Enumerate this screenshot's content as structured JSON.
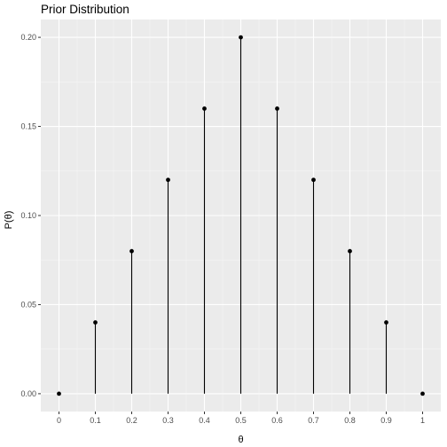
{
  "chart_data": {
    "type": "lollipop",
    "title": "Prior Distribution",
    "xlabel": "θ",
    "ylabel": "P(θ)",
    "x": [
      0,
      0.1,
      0.2,
      0.3,
      0.4,
      0.5,
      0.6,
      0.7,
      0.8,
      0.9,
      1
    ],
    "y": [
      0.0,
      0.04,
      0.08,
      0.12,
      0.16,
      0.2,
      0.16,
      0.12,
      0.08,
      0.04,
      0.0
    ],
    "x_tick_labels": [
      "0",
      "0.1",
      "0.2",
      "0.3",
      "0.4",
      "0.5",
      "0.6",
      "0.7",
      "0.8",
      "0.9",
      "1"
    ],
    "y_ticks": [
      0,
      0.05,
      0.1,
      0.15,
      0.2
    ],
    "y_tick_labels": [
      "0.00",
      "0.05",
      "0.10",
      "0.15",
      "0.20"
    ],
    "xlim": [
      -0.05,
      1.05
    ],
    "ylim": [
      -0.01,
      0.21
    ],
    "grid": true,
    "legend": "none",
    "colors": {
      "panel_background": "#ebebeb",
      "grid_major": "#ffffff",
      "grid_minor": "#f5f5f5",
      "marks": "#000000",
      "tick_text": "#4d4d4d",
      "tick_mark": "#333333"
    }
  }
}
